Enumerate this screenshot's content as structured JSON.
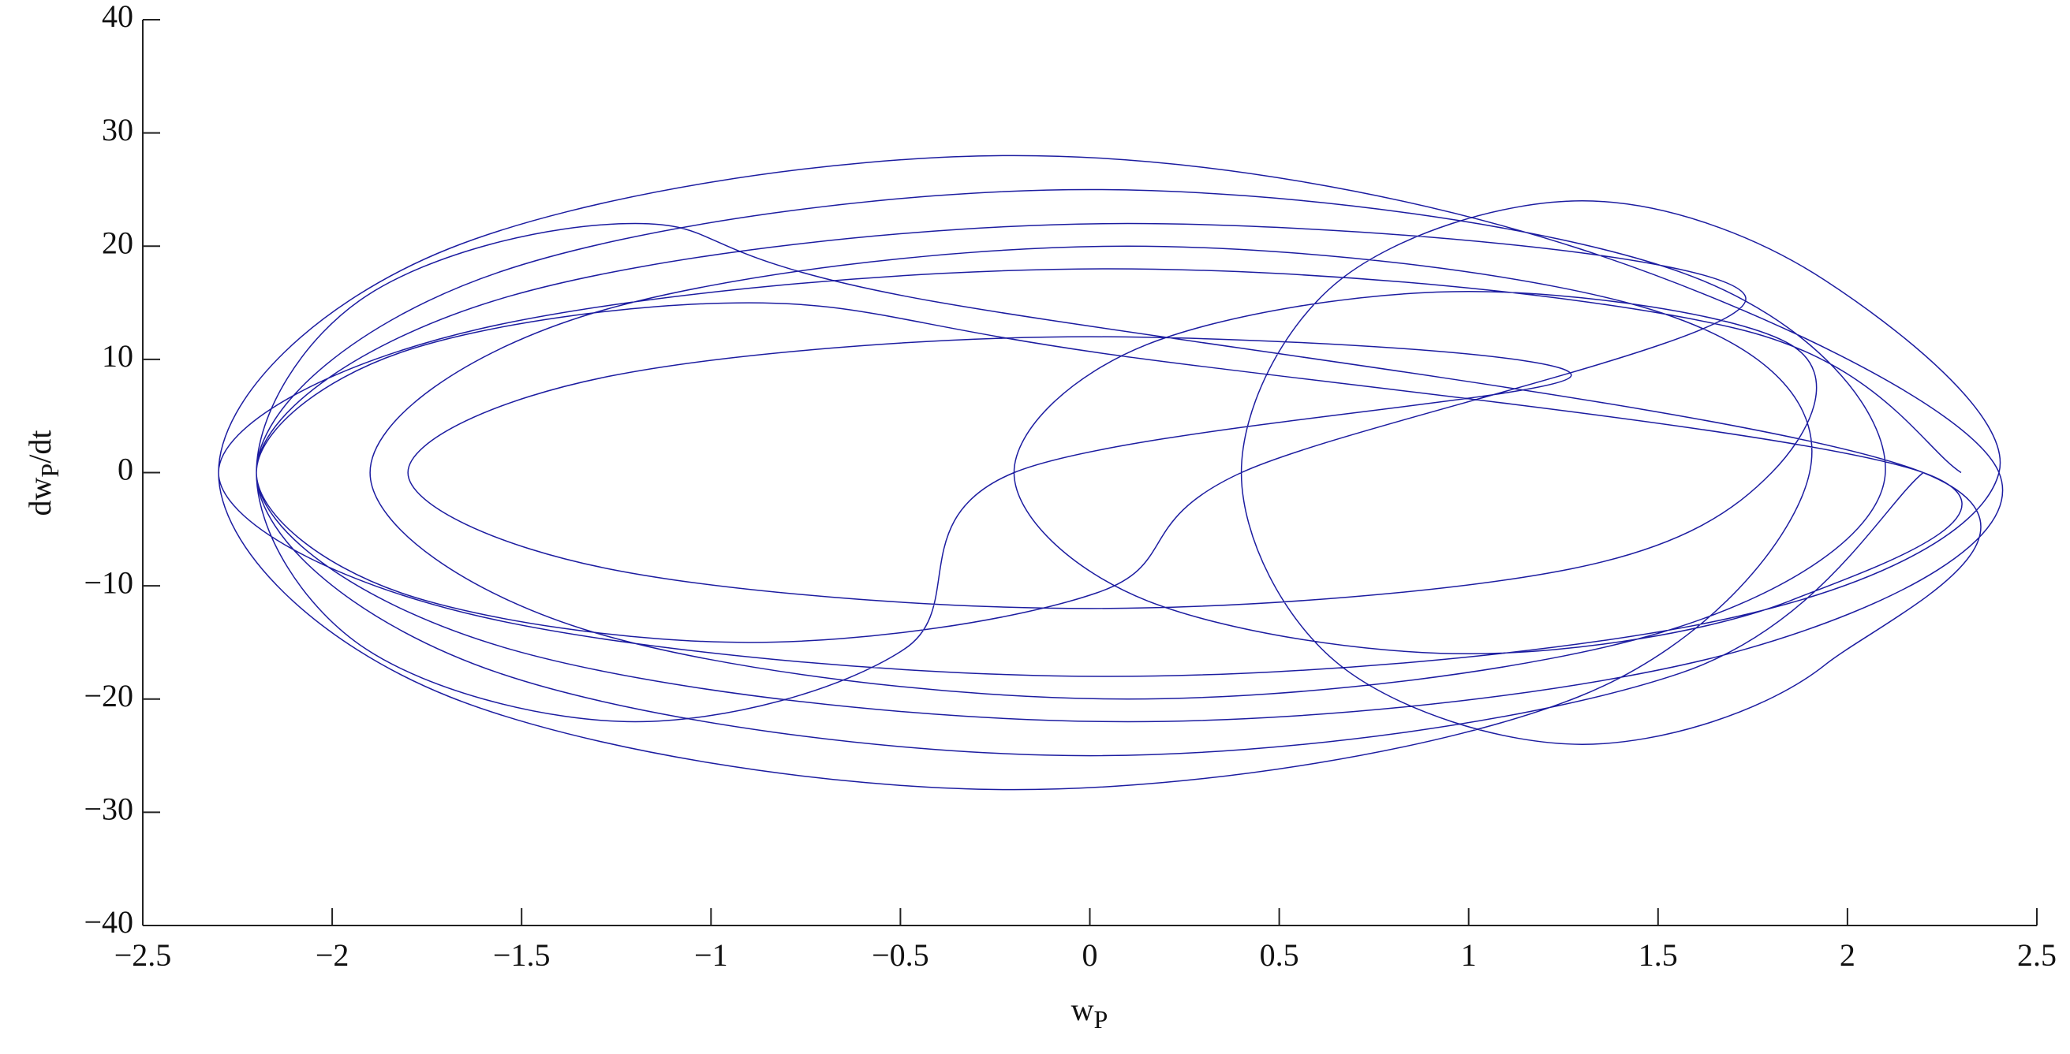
{
  "chart_data": {
    "type": "line",
    "xlabel": {
      "main": "w",
      "sub": "P"
    },
    "ylabel": {
      "pre": "dw",
      "sub": "P",
      "post": "/dt"
    },
    "xlim": [
      -2.5,
      2.5
    ],
    "xticks": [
      {
        "value": -2.5,
        "label": "−2.5"
      },
      {
        "value": -2,
        "label": "−2"
      },
      {
        "value": -1.5,
        "label": "−1.5"
      },
      {
        "value": -1,
        "label": "−1"
      },
      {
        "value": -0.5,
        "label": "−0.5"
      },
      0,
      0.5,
      1,
      1.5,
      2,
      2.5
    ],
    "ylim": [
      -40,
      40
    ],
    "yticks": [
      {
        "value": -40,
        "label": "−40"
      },
      {
        "value": -30,
        "label": "−30"
      },
      {
        "value": -20,
        "label": "−20"
      },
      {
        "value": -10,
        "label": "−10"
      },
      0,
      10,
      20,
      30,
      40
    ],
    "series": [
      {
        "color": "#1c1ca0",
        "x": [
          2.2,
          1.56,
          0,
          -1.56,
          -2.2,
          -1.56,
          0,
          1.56,
          2.1,
          1.51,
          0.1,
          -1.31,
          -1.9,
          -1.31,
          0.1,
          1.51,
          1.9,
          1.29,
          -0.2,
          -1.69,
          -2.3,
          -1.69,
          -0.2,
          1.29,
          2.4,
          1.73,
          0.1,
          -1.53,
          -2.2,
          -1.53,
          0.1,
          1.73,
          0.4,
          0.02,
          -0.9,
          -1.82,
          -2.2,
          -1.82,
          -0.9,
          0.02,
          2.2,
          1.85,
          1,
          0.15,
          -0.2,
          0.15,
          1,
          1.85,
          1.8,
          1.27,
          0,
          -1.27,
          -1.8,
          -1.27,
          0,
          1.27,
          -0.2,
          -0.49,
          -1.2,
          -1.91,
          -2.2,
          -1.91,
          -1.2,
          -0.49,
          2.2,
          1.94,
          1.3,
          0.66,
          0.4,
          0.66,
          1.3,
          1.94,
          2.4,
          1.71,
          0.05,
          -1.61,
          -2.3,
          -1.61,
          0.05,
          1.71,
          2.3
        ],
        "values": [
          0,
          -17.7,
          -25,
          -17.7,
          0,
          17.7,
          25,
          17.7,
          0,
          -14.1,
          -20,
          -14.1,
          0,
          14.1,
          20,
          14.1,
          0,
          -19.8,
          -28,
          -19.8,
          0,
          19.8,
          28,
          19.8,
          0,
          -15.6,
          -22,
          -15.6,
          0,
          15.6,
          22,
          15.6,
          0,
          -10.6,
          -15,
          -10.6,
          0,
          10.6,
          15,
          10.6,
          0,
          -11.3,
          -16,
          -11.3,
          0,
          11.3,
          16,
          11.3,
          0,
          -8.5,
          -12,
          -8.5,
          0,
          8.5,
          12,
          8.5,
          0,
          -15.6,
          -22,
          -15.6,
          0,
          15.6,
          22,
          15.6,
          0,
          -17,
          -24,
          -17,
          0,
          17,
          24,
          17,
          0,
          -12.7,
          -18,
          -12.7,
          0,
          12.7,
          18,
          12.7,
          0
        ]
      }
    ]
  }
}
